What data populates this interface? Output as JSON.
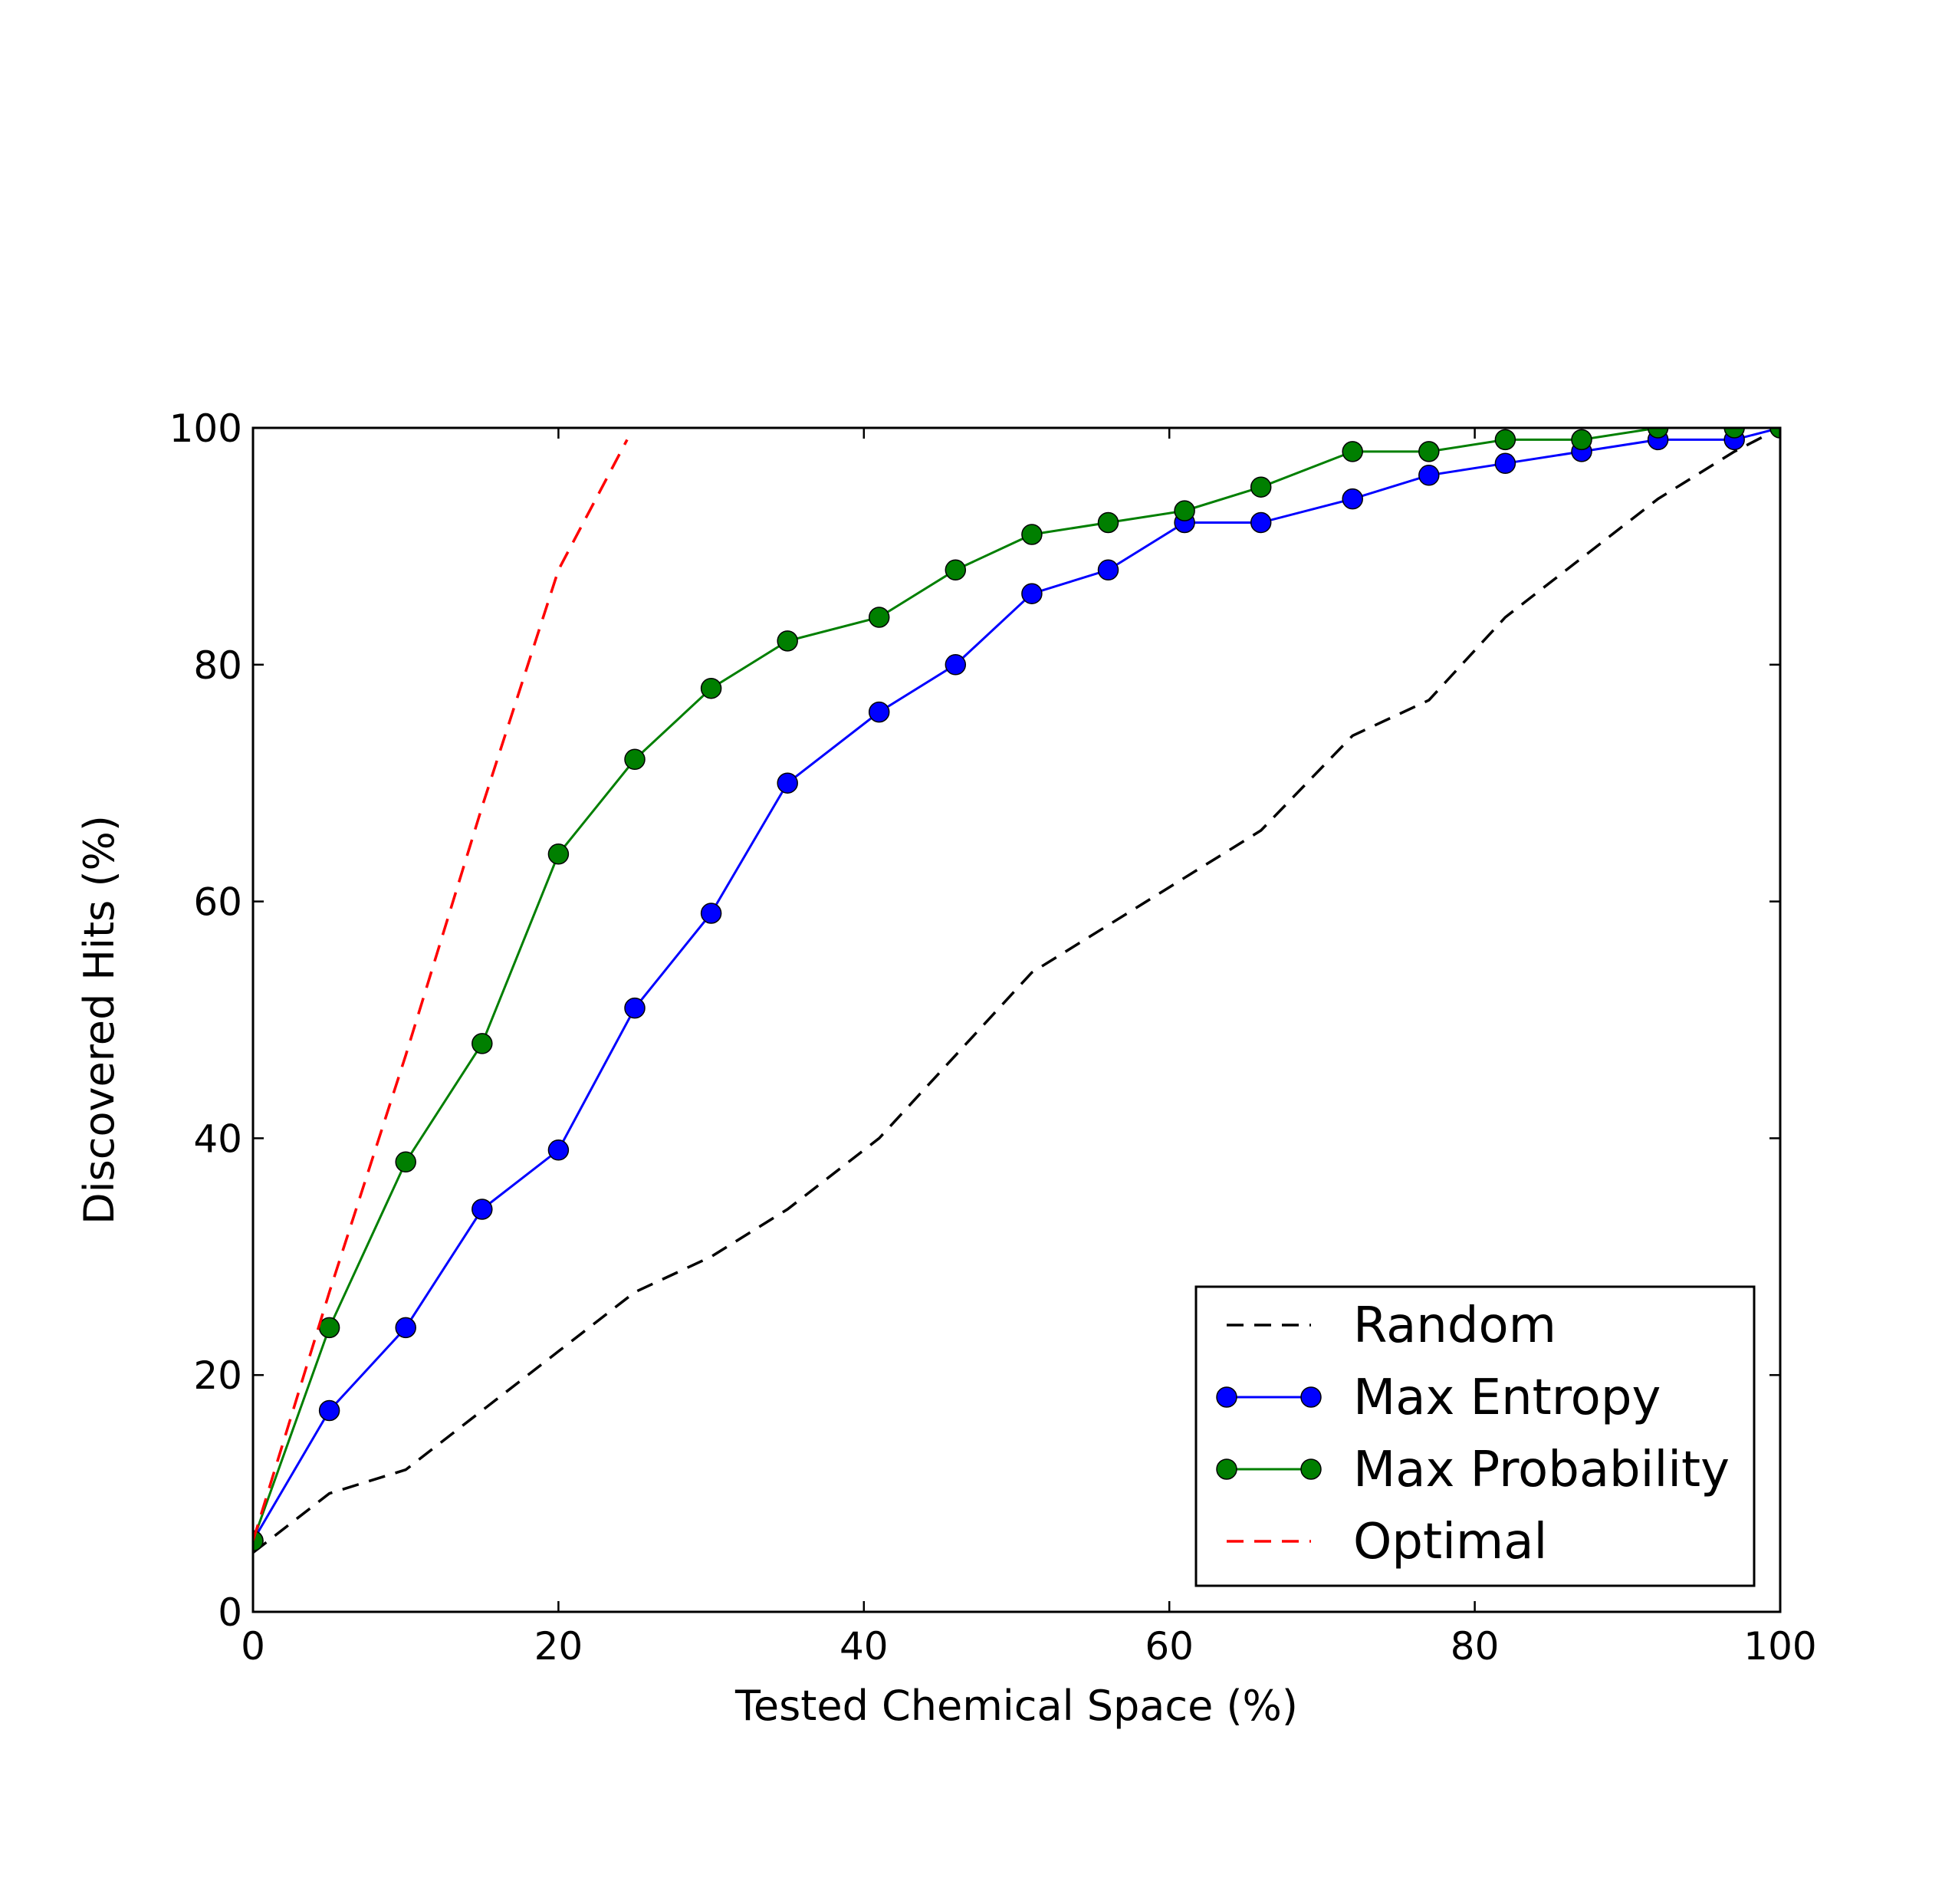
{
  "chart_data": {
    "type": "line",
    "xlabel": "Tested Chemical Space (%)",
    "ylabel": "Discovered Hits (%)",
    "xlim": [
      0,
      100
    ],
    "ylim": [
      0,
      100
    ],
    "xticks": [
      "0",
      "20",
      "40",
      "60",
      "80",
      "100"
    ],
    "yticks": [
      "0",
      "20",
      "40",
      "60",
      "80",
      "100"
    ],
    "grid": false,
    "legend_position": "lower-right",
    "series": [
      {
        "name": "Random",
        "style": "dashed",
        "marker": "none",
        "color": "#000000",
        "x": [
          0,
          5,
          10,
          15,
          20,
          25,
          30,
          35,
          41,
          46,
          51,
          56,
          61,
          66,
          72,
          77,
          82,
          87,
          92,
          97,
          100
        ],
        "y": [
          5,
          10,
          12,
          17,
          22,
          27,
          30,
          34,
          40,
          47,
          54,
          58,
          62,
          66,
          74,
          77,
          84,
          89,
          94,
          98,
          100
        ]
      },
      {
        "name": "Max Entropy",
        "style": "solid",
        "marker": "circle",
        "color": "#0000ff",
        "x": [
          0,
          5,
          10,
          15,
          20,
          25,
          30,
          35,
          41,
          46,
          51,
          56,
          61,
          66,
          72,
          77,
          82,
          87,
          92,
          97,
          100
        ],
        "y": [
          6,
          17,
          24,
          34,
          39,
          51,
          59,
          70,
          76,
          80,
          86,
          88,
          92,
          92,
          94,
          96,
          97,
          98,
          99,
          99,
          100
        ]
      },
      {
        "name": "Max Probability",
        "style": "solid",
        "marker": "circle",
        "color": "#007f00",
        "x": [
          0,
          5,
          10,
          15,
          20,
          25,
          30,
          35,
          41,
          46,
          51,
          56,
          61,
          66,
          72,
          77,
          82,
          87,
          92,
          97,
          100
        ],
        "y": [
          6,
          24,
          38,
          48,
          64,
          72,
          78,
          82,
          84,
          88,
          91,
          92,
          93,
          95,
          98,
          98,
          99,
          99,
          100,
          100,
          100
        ]
      },
      {
        "name": "Optimal",
        "style": "dashed",
        "marker": "none",
        "color": "#ff0000",
        "x": [
          0,
          5,
          10,
          15,
          20,
          24.5
        ],
        "y": [
          6,
          27,
          47,
          68,
          88,
          99
        ]
      }
    ]
  }
}
